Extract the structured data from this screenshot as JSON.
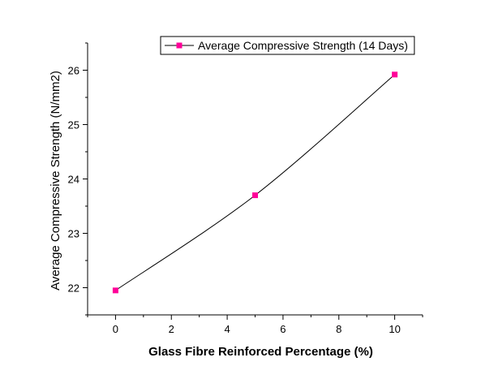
{
  "chart_data": {
    "type": "line",
    "xlabel": "Glass Fibre Reinforced Percentage (%)",
    "ylabel": "Average Compressive Strength (N/mm2)",
    "xlim": [
      -1,
      11
    ],
    "ylim": [
      21.5,
      26.5
    ],
    "xticks": [
      0,
      2,
      4,
      6,
      8,
      10
    ],
    "yticks": [
      22,
      23,
      24,
      25,
      26
    ],
    "grid": false,
    "legend_position": "top-right",
    "series": [
      {
        "name": "Average Compressive Strength (14 Days)",
        "color": "#ff0099",
        "marker": "square",
        "line_color": "#000000",
        "smooth": true,
        "x": [
          0,
          5,
          10
        ],
        "y": [
          21.95,
          23.7,
          25.92
        ]
      }
    ]
  }
}
